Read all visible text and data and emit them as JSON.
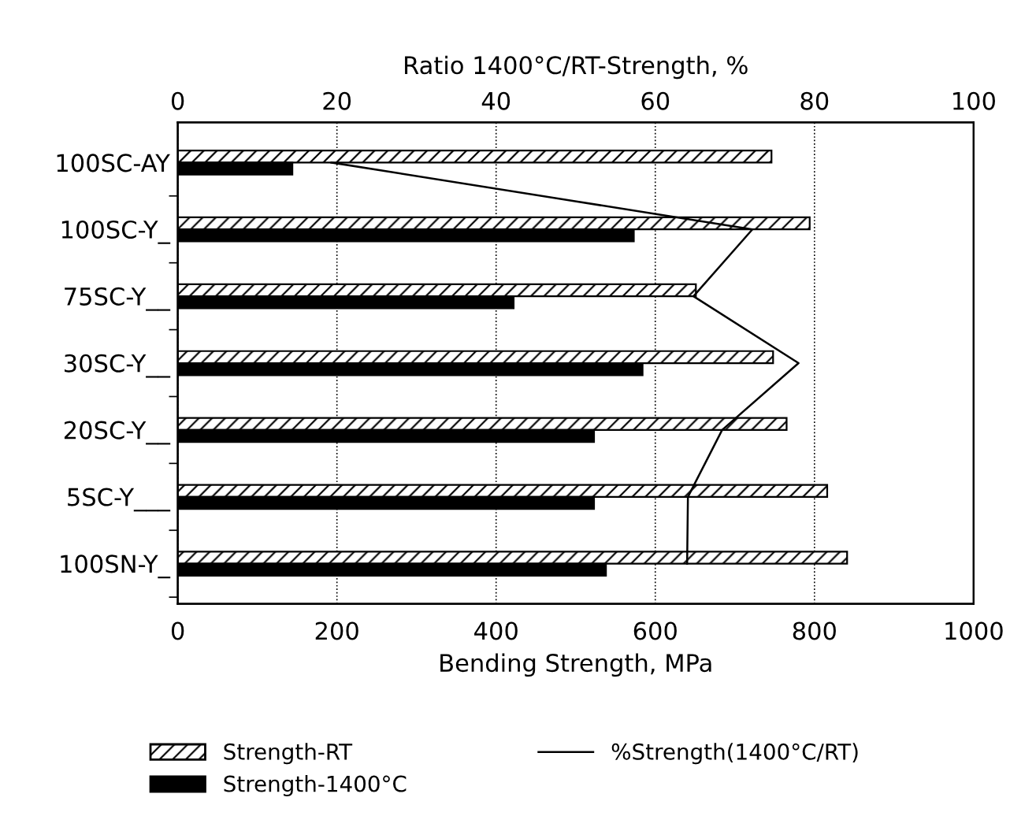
{
  "chart_data": {
    "type": "bar",
    "orientation": "horizontal",
    "xlabel": "Bending Strength, MPa",
    "x2label": "Ratio 1400°C/RT-Strength, %",
    "categories": [
      "100SC-AY",
      "100SC-Y_",
      "75SC-Y__",
      "30SC-Y__",
      "20SC-Y__",
      "5SC-Y___",
      "100SN-Y_"
    ],
    "series": [
      {
        "name": "Strength-RT",
        "color": "#000000",
        "values": [
          746,
          794,
          651,
          748,
          765,
          816,
          841
        ]
      },
      {
        "name": "Strength-1400°C",
        "color": "#000000",
        "values": [
          144,
          573,
          422,
          584,
          523,
          523,
          538
        ]
      },
      {
        "name": "%Strength(1400°C/RT)",
        "type": "line",
        "axis": "x2",
        "color": "#000000",
        "values": [
          19.3,
          72.2,
          64.8,
          78,
          68.4,
          64.1,
          64
        ]
      }
    ],
    "xlim": [
      0,
      1000
    ],
    "xticks": [
      0,
      200,
      400,
      600,
      800,
      1000
    ],
    "x2lim": [
      0,
      100
    ],
    "x2ticks": [
      0,
      20,
      40,
      60,
      80,
      100
    ],
    "grid": "x",
    "legend": "bottom",
    "marker": "none"
  }
}
